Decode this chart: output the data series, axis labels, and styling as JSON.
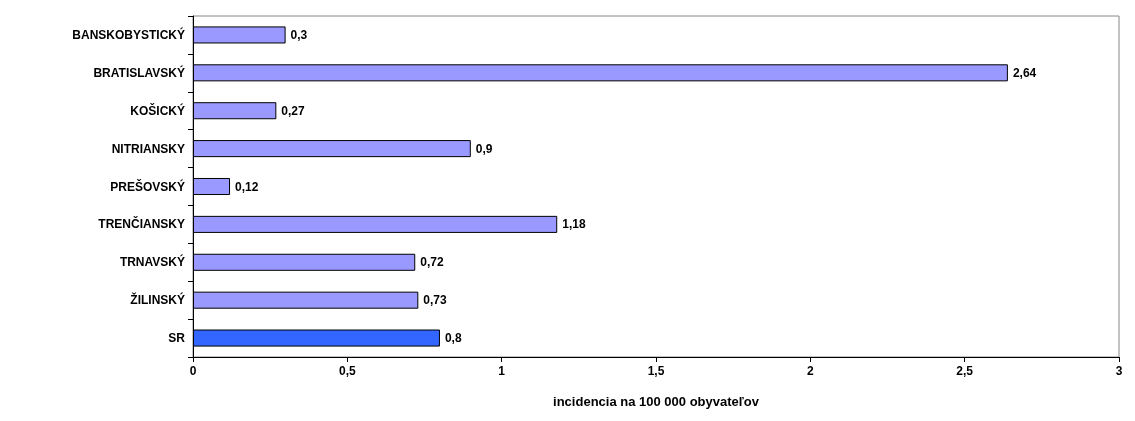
{
  "chart_data": {
    "type": "bar",
    "orientation": "horizontal",
    "xlabel": "incidencia na 100 000 obyvateľov",
    "categories": [
      "BANSKOBYSTICKÝ",
      "BRATISLAVSKÝ",
      "KOŠICKÝ",
      "NITRIANSKY",
      "PREŠOVSKÝ",
      "TRENČIANSKY",
      "TRNAVSKÝ",
      "ŽILINSKÝ",
      "SR"
    ],
    "values": [
      0.3,
      2.64,
      0.27,
      0.9,
      0.12,
      1.18,
      0.72,
      0.73,
      0.8
    ],
    "colors": [
      "#9999ff",
      "#9999ff",
      "#9999ff",
      "#9999ff",
      "#9999ff",
      "#9999ff",
      "#9999ff",
      "#9999ff",
      "#3366ff"
    ],
    "value_labels": [
      "0,3",
      "2,64",
      "0,27",
      "0,9",
      "0,12",
      "1,18",
      "0,72",
      "0,73",
      "0,8"
    ],
    "xlim": [
      0,
      3
    ],
    "xticks": [
      0,
      {
        "value": 0.5,
        "label": "0,5"
      },
      1,
      {
        "value": 1.5,
        "label": "1,5"
      },
      2,
      {
        "value": 2.5,
        "label": "2,5"
      },
      3
    ],
    "grid": false
  }
}
